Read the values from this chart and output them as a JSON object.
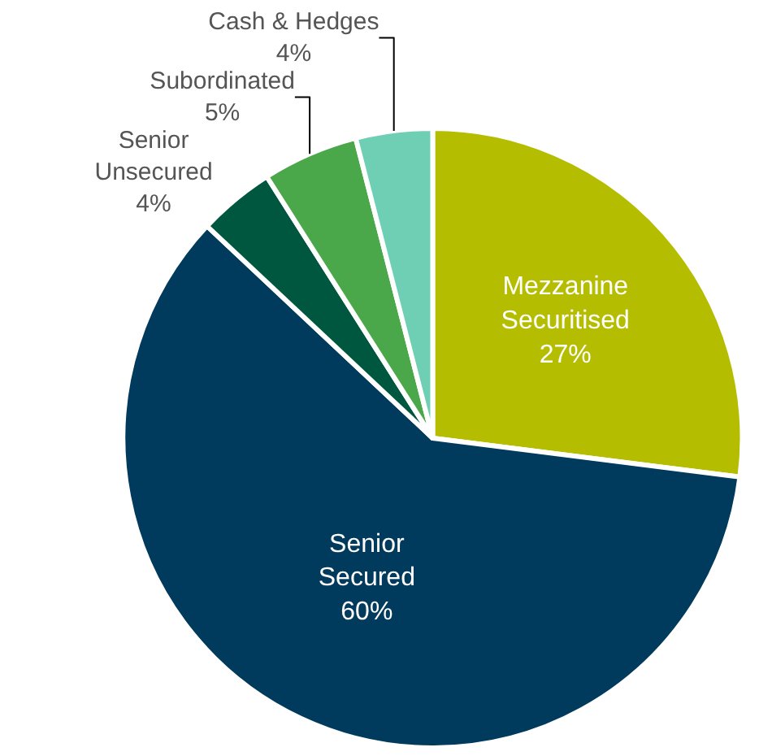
{
  "chart_data": {
    "type": "pie",
    "categories": [
      "Mezzanine Securitised",
      "Senior Secured",
      "Senior Unsecured",
      "Subordinated",
      "Cash & Hedges"
    ],
    "values": [
      27,
      60,
      4,
      5,
      4
    ],
    "value_labels": [
      "27%",
      "60%",
      "4%",
      "5%",
      "4%"
    ],
    "colors": [
      "#b5bd00",
      "#003a5c",
      "#00573f",
      "#4aa84a",
      "#6fcfb5"
    ],
    "legend": false
  }
}
